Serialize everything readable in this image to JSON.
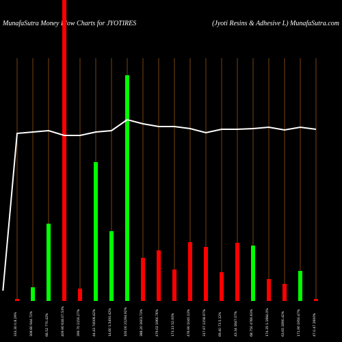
{
  "chart_data": {
    "type": "bar",
    "title": "MunafaSutra  Money  Flow  Charts for JYOTIRES",
    "subtitle": "(Jyoti   Resins & Adhesive   L) MunafaSutra.com",
    "categories": [
      "333.30 0.8.29%",
      "308.80 944.72%",
      "66.52 770.42%",
      "409.90 618.07.53%",
      "399.70 1150.27%",
      "44.43 74008.42%",
      "14.60 1.5400.42%",
      "100.00 21294.92%",
      "388.20 1603.73%",
      "479.02 1960.76%",
      "173.13 52.00%",
      "476.90 1040.13%",
      "317.97 1158.97%",
      "69.40 73.5.12%",
      "43.34 1647.07%",
      "68.750 4780.63%",
      "174.35 1.1664.0%",
      "63.65 1890.42%",
      "171.90 1950.47%",
      "47.0.47 2600%"
    ],
    "values": [
      3,
      20,
      113,
      440,
      18,
      203,
      102,
      330,
      63,
      74,
      46,
      86,
      79,
      42,
      85,
      81,
      32,
      25,
      44,
      3
    ],
    "colors": [
      "#ff0000",
      "#00ff00",
      "#00ff00",
      "#ff0000",
      "#ff0000",
      "#00ff00",
      "#00ff00",
      "#00ff00",
      "#ff0000",
      "#ff0000",
      "#ff0000",
      "#ff0000",
      "#ff0000",
      "#ff0000",
      "#ff0000",
      "#00ff00",
      "#ff0000",
      "#ff0000",
      "#00ff00",
      "#ff0000"
    ],
    "line": {
      "color": "#ffffff",
      "x": [
        -0.9,
        0,
        1,
        2,
        3,
        4,
        5,
        6,
        7,
        8,
        9,
        10,
        11,
        12,
        13,
        14,
        15,
        16,
        17,
        18,
        19
      ],
      "values": [
        15,
        245,
        247,
        249,
        242,
        242,
        247,
        249,
        265,
        259,
        255,
        255,
        252,
        246,
        251,
        251,
        252,
        254,
        250,
        254,
        251
      ]
    },
    "grid_color": "#7a4510",
    "ylim": [
      0,
      440
    ],
    "xlim": [
      -1,
      20.2
    ]
  }
}
